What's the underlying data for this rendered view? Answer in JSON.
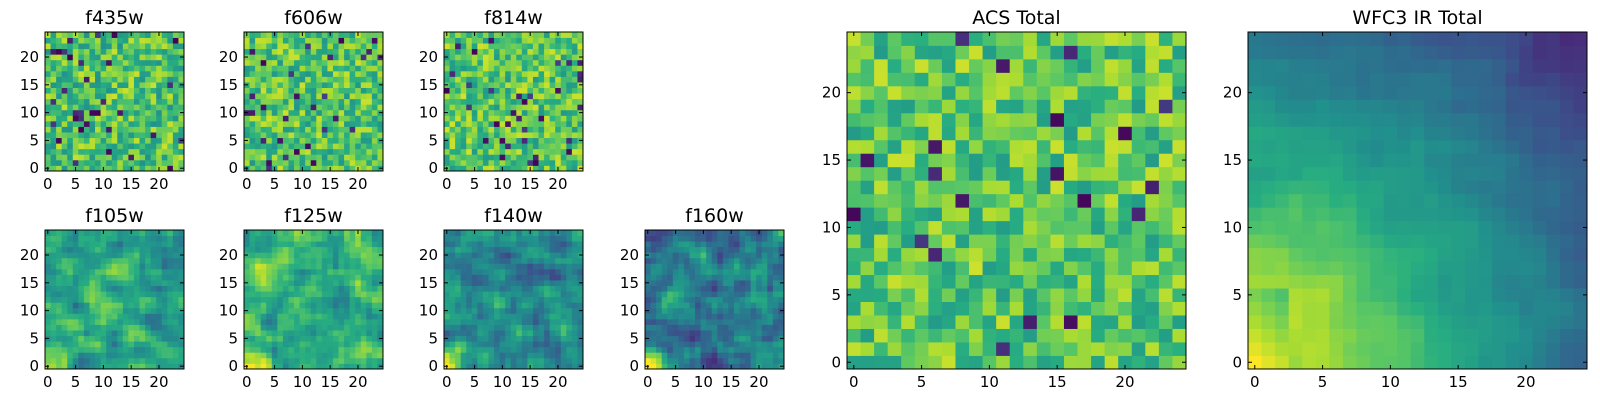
{
  "chart_data": [
    {
      "id": "f435w",
      "type": "heatmap",
      "title": "f435w",
      "xlim": [
        0,
        24
      ],
      "ylim": [
        0,
        24
      ],
      "xticks": [
        0,
        5,
        10,
        15,
        20
      ],
      "yticks": [
        0,
        5,
        10,
        15,
        20
      ],
      "colormap": "viridis",
      "pattern": "uniform noise, mostly green-yellow with scattered dark pixels"
    },
    {
      "id": "f606w",
      "type": "heatmap",
      "title": "f606w",
      "xlim": [
        0,
        24
      ],
      "ylim": [
        0,
        24
      ],
      "xticks": [
        0,
        5,
        10,
        15,
        20
      ],
      "yticks": [
        0,
        5,
        10,
        15,
        20
      ],
      "colormap": "viridis",
      "pattern": "uniform noise, green-yellow with a few dark pixels"
    },
    {
      "id": "f814w",
      "type": "heatmap",
      "title": "f814w",
      "xlim": [
        0,
        24
      ],
      "ylim": [
        0,
        24
      ],
      "xticks": [
        0,
        5,
        10,
        15,
        20
      ],
      "yticks": [
        0,
        5,
        10,
        15,
        20
      ],
      "colormap": "viridis",
      "pattern": "uniform noise, slightly brighter toward upper left"
    },
    {
      "id": "f105w",
      "type": "heatmap",
      "title": "f105w",
      "xlim": [
        0,
        24
      ],
      "ylim": [
        0,
        24
      ],
      "xticks": [
        0,
        5,
        10,
        15,
        20
      ],
      "yticks": [
        0,
        5,
        10,
        15,
        20
      ],
      "colormap": "viridis",
      "pattern": "smooth noise, bright corner at lower left"
    },
    {
      "id": "f125w",
      "type": "heatmap",
      "title": "f125w",
      "xlim": [
        0,
        24
      ],
      "ylim": [
        0,
        24
      ],
      "xticks": [
        0,
        5,
        10,
        15,
        20
      ],
      "yticks": [
        0,
        5,
        10,
        15,
        20
      ],
      "colormap": "viridis",
      "pattern": "smooth noise, bright lower-left region"
    },
    {
      "id": "f140w",
      "type": "heatmap",
      "title": "f140w",
      "xlim": [
        0,
        24
      ],
      "ylim": [
        0,
        24
      ],
      "xticks": [
        0,
        5,
        10,
        15,
        20
      ],
      "yticks": [
        0,
        5,
        10,
        15,
        20
      ],
      "colormap": "viridis",
      "pattern": "smooth noise, darker overall, bright lower-left corner"
    },
    {
      "id": "f160w",
      "type": "heatmap",
      "title": "f160w",
      "xlim": [
        0,
        24
      ],
      "ylim": [
        0,
        24
      ],
      "xticks": [
        0,
        5,
        10,
        15,
        20
      ],
      "yticks": [
        0,
        5,
        10,
        15,
        20
      ],
      "colormap": "viridis",
      "pattern": "smooth noise, dark blue-purple with bright lower-left corner"
    },
    {
      "id": "acs_total",
      "type": "heatmap",
      "title": "ACS Total",
      "xlim": [
        0,
        24
      ],
      "ylim": [
        0,
        24
      ],
      "xticks": [
        0,
        5,
        10,
        15,
        20
      ],
      "yticks": [
        0,
        5,
        10,
        15,
        20
      ],
      "colormap": "viridis",
      "pattern": "uniform noise, green-yellow with scattered dark pixels"
    },
    {
      "id": "wfc3_ir_total",
      "type": "heatmap",
      "title": "WFC3 IR Total",
      "xlim": [
        0,
        24
      ],
      "ylim": [
        0,
        24
      ],
      "xticks": [
        0,
        5,
        10,
        15,
        20
      ],
      "yticks": [
        0,
        5,
        10,
        15,
        20
      ],
      "colormap": "viridis",
      "pattern": "smooth gradient, bright yellow lower-left to dark purple upper-right"
    }
  ]
}
